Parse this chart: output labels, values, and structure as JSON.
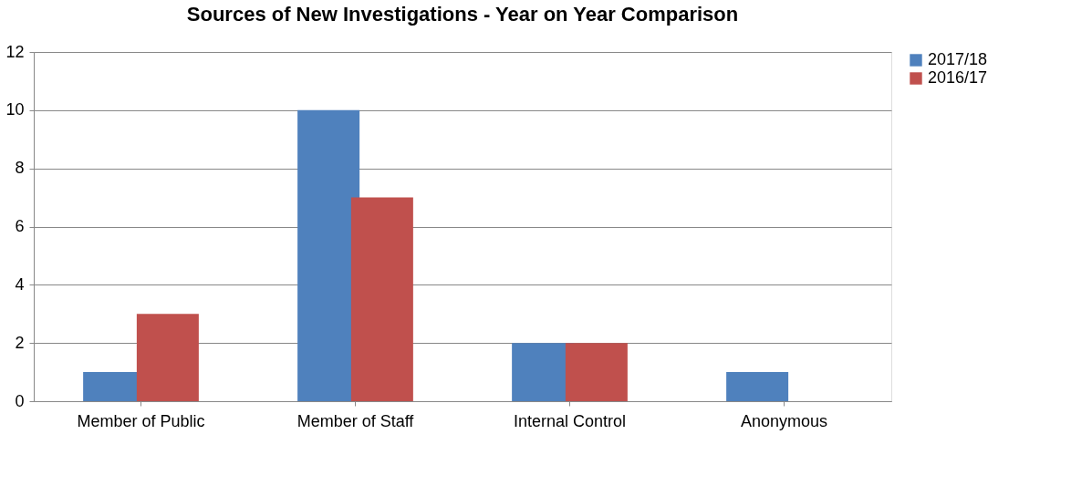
{
  "chart_data": {
    "type": "bar",
    "title": "Sources of New Investigations - Year on Year Comparison",
    "categories": [
      "Member of Public",
      "Member of Staff",
      "Internal Control",
      "Anonymous"
    ],
    "series": [
      {
        "name": "2017/18",
        "color": "#4f81bd",
        "values": [
          1,
          10,
          2,
          1
        ]
      },
      {
        "name": "2016/17",
        "color": "#c0504d",
        "values": [
          3,
          7,
          2,
          0
        ]
      }
    ],
    "ylim": [
      0,
      12
    ],
    "yticks": [
      0,
      2,
      4,
      6,
      8,
      10,
      12
    ],
    "grid": "y",
    "legend": "right"
  }
}
